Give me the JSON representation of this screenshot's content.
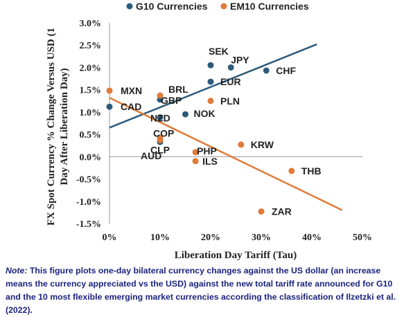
{
  "chart_data": {
    "type": "scatter",
    "xlabel": "Liberation Day Tariff (Tau)",
    "ylabel": "FX Spot Currency % Change Versus USD (1 Day After Liberation Day)",
    "xlim": [
      0,
      50
    ],
    "ylim": [
      -1.5,
      3.0
    ],
    "x_ticks": [
      "0%",
      "10%",
      "20%",
      "30%",
      "40%",
      "50%"
    ],
    "y_ticks": [
      "-1.5%",
      "-1.0%",
      "-0.5%",
      "0.0%",
      "0.5%",
      "1.0%",
      "1.5%",
      "2.0%",
      "2.5%",
      "3.0%"
    ],
    "legend_placement": "top",
    "grid": false,
    "series": [
      {
        "name": "G10 Currencies",
        "color": "#2e5a7a",
        "points": [
          {
            "label": "SEK",
            "x": 20,
            "y": 2.05
          },
          {
            "label": "JPY",
            "x": 24,
            "y": 2.0
          },
          {
            "label": "CHF",
            "x": 31,
            "y": 1.93
          },
          {
            "label": "EUR",
            "x": 20,
            "y": 1.68
          },
          {
            "label": "GBP",
            "x": 10,
            "y": 1.28
          },
          {
            "label": "CAD",
            "x": 0,
            "y": 1.12
          },
          {
            "label": "NOK",
            "x": 15,
            "y": 0.95
          },
          {
            "label": "NZD",
            "x": 10,
            "y": 0.88
          },
          {
            "label": "AUD",
            "x": 10,
            "y": 0.33
          }
        ],
        "trend": {
          "x": [
            0,
            41
          ],
          "y": [
            0.65,
            2.52
          ]
        }
      },
      {
        "name": "EM10 Currencies",
        "color": "#e07b39",
        "points": [
          {
            "label": "MXN",
            "x": 0,
            "y": 1.48
          },
          {
            "label": "BRL",
            "x": 10,
            "y": 1.37
          },
          {
            "label": "PLN",
            "x": 20,
            "y": 1.25
          },
          {
            "label": "COP",
            "x": 10,
            "y": 0.42
          },
          {
            "label": "CLP",
            "x": 10,
            "y": 0.37
          },
          {
            "label": "PHP",
            "x": 17,
            "y": 0.1
          },
          {
            "label": "ILS",
            "x": 17,
            "y": -0.1
          },
          {
            "label": "KRW",
            "x": 26,
            "y": 0.27
          },
          {
            "label": "THB",
            "x": 36,
            "y": -0.32
          },
          {
            "label": "ZAR",
            "x": 30,
            "y": -1.23
          }
        ],
        "trend": {
          "x": [
            0,
            46
          ],
          "y": [
            1.32,
            -1.2
          ]
        }
      }
    ]
  },
  "note": {
    "label": "Note:",
    "text": " This figure plots one-day bilateral currency changes against the US dollar (an increase means the currency appreciated vs the USD) against the new total tariff rate announced for G10 and the 10 most flexible emerging market currencies according the classification of Ilzetzki et al. (2022)."
  }
}
